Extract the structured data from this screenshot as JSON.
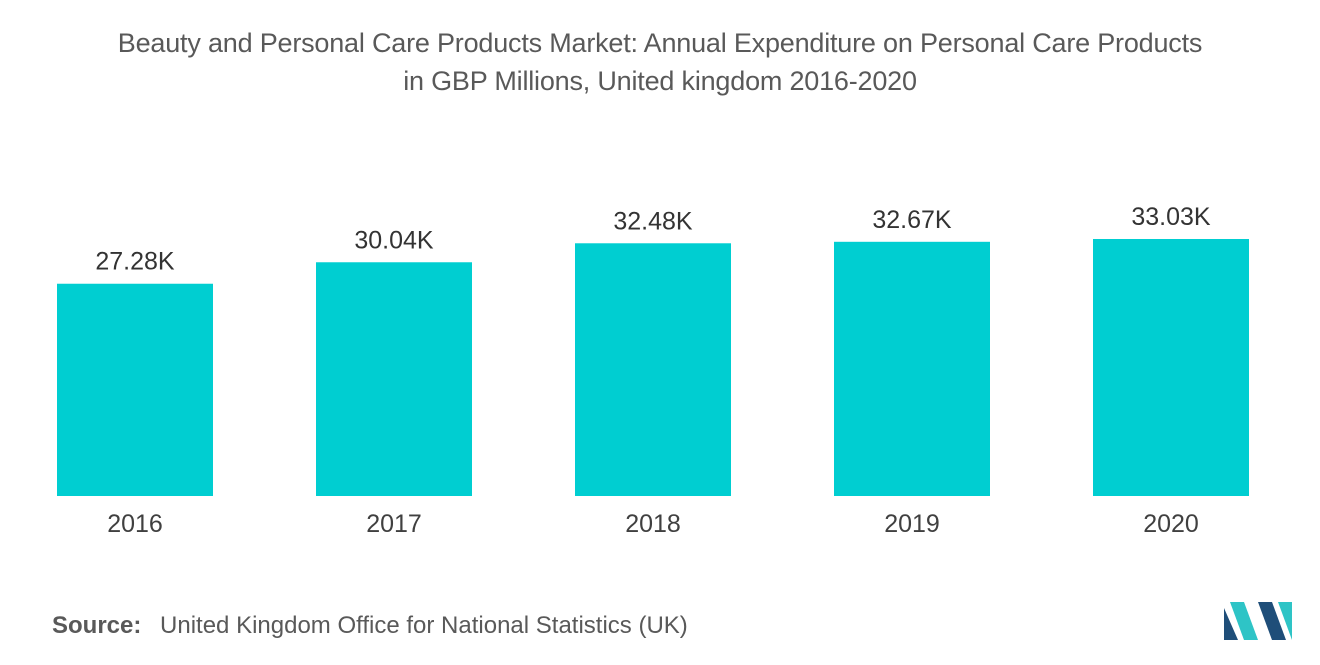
{
  "chart_data": {
    "type": "bar",
    "title": "Beauty and Personal Care Products Market: Annual Expenditure on Personal Care Products in GBP Millions, United kingdom 2016-2020",
    "title_lines": [
      "Beauty and Personal Care Products Market: Annual Expenditure on Personal Care Products",
      "in GBP Millions, United kingdom 2016-2020"
    ],
    "categories": [
      "2016",
      "2017",
      "2018",
      "2019",
      "2020"
    ],
    "values": [
      27.28,
      30.04,
      32.48,
      32.67,
      33.03
    ],
    "value_labels": [
      "27.28K",
      "30.04K",
      "32.48K",
      "32.67K",
      "33.03K"
    ],
    "ylim": [
      0,
      33.03
    ],
    "xlabel": "",
    "ylabel": "",
    "grid": false,
    "legend": "none",
    "bar_color": "#00ced1"
  },
  "source": {
    "label": "Source:",
    "text": "United Kingdom Office for National Statistics (UK)"
  },
  "logo": {
    "icon": "mordor-intelligence-logo-icon",
    "colors": [
      "#1f4e79",
      "#2ec4c6"
    ]
  }
}
